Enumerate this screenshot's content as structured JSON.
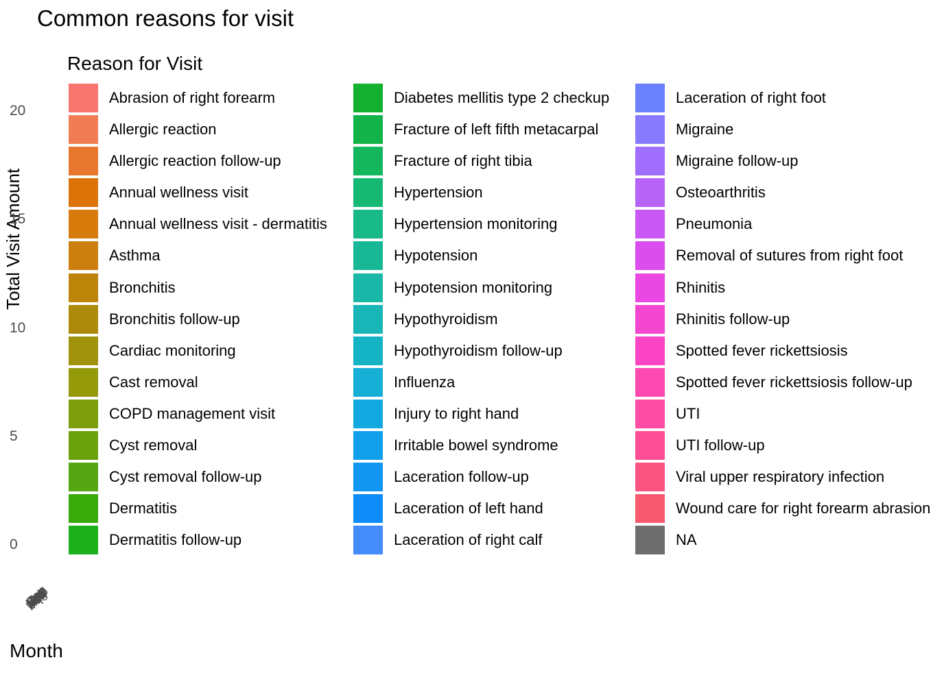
{
  "chart_data": {
    "type": "bar",
    "title": "Common reasons for visit",
    "xlabel": "Month",
    "ylabel": "Total Visit Amount",
    "ylim": [
      0,
      21
    ],
    "y_ticks": [
      "0",
      "5",
      "10",
      "15",
      "20"
    ],
    "x_ticks": [
      "Jan",
      "Feb",
      "Mar",
      "Apr",
      "May",
      "Jun",
      "Jul",
      "Aug",
      "Sep",
      "Oct",
      "Nov",
      "Dec"
    ],
    "grid": false,
    "legend": {
      "title": "Reason for Visit",
      "placement": "overlay",
      "columns": 3,
      "entries": [
        {
          "label": "Abrasion of right forearm",
          "color": "#F8766D"
        },
        {
          "label": "Allergic reaction",
          "color": "#F07D53"
        },
        {
          "label": "Allergic reaction follow-up",
          "color": "#E7762F"
        },
        {
          "label": "Annual wellness visit",
          "color": "#DB7308"
        },
        {
          "label": "Annual wellness visit - dermatitis",
          "color": "#D67A0C"
        },
        {
          "label": "Asthma",
          "color": "#CB7F0E"
        },
        {
          "label": "Bronchitis",
          "color": "#BC850A"
        },
        {
          "label": "Bronchitis follow-up",
          "color": "#AE8A0A"
        },
        {
          "label": "Cardiac monitoring",
          "color": "#A0920A"
        },
        {
          "label": "Cast removal",
          "color": "#959A0B"
        },
        {
          "label": "COPD management visit",
          "color": "#7F9E0C"
        },
        {
          "label": "Cyst removal",
          "color": "#6AA20E"
        },
        {
          "label": "Cyst removal follow-up",
          "color": "#55A612"
        },
        {
          "label": "Dermatitis",
          "color": "#3AAA0B"
        },
        {
          "label": "Dermatitis follow-up",
          "color": "#1DB01D"
        },
        {
          "label": "Diabetes mellitis type 2 checkup",
          "color": "#14B131"
        },
        {
          "label": "Fracture of left fifth metacarpal",
          "color": "#12B44A"
        },
        {
          "label": "Fracture of right tibia",
          "color": "#14B75E"
        },
        {
          "label": "Hypertension",
          "color": "#16B974"
        },
        {
          "label": "Hypertension monitoring",
          "color": "#17B986"
        },
        {
          "label": "Hypotension",
          "color": "#18B897"
        },
        {
          "label": "Hypotension monitoring",
          "color": "#18B7A8"
        },
        {
          "label": "Hypothyroidism",
          "color": "#18B6B7"
        },
        {
          "label": "Hypothyroidism follow-up",
          "color": "#14B3C6"
        },
        {
          "label": "Influenza",
          "color": "#16B0D6"
        },
        {
          "label": "Injury to right hand",
          "color": "#14A8E0"
        },
        {
          "label": "Irritable bowel syndrome",
          "color": "#12A0EA"
        },
        {
          "label": "Laceration follow-up",
          "color": "#1197F2"
        },
        {
          "label": "Laceration of left hand",
          "color": "#0E8DF8"
        },
        {
          "label": "Laceration of right calf",
          "color": "#448BFB"
        },
        {
          "label": "Laceration of right foot",
          "color": "#6B81FE"
        },
        {
          "label": "Migraine",
          "color": "#8879FE"
        },
        {
          "label": "Migraine follow-up",
          "color": "#A06EFD"
        },
        {
          "label": "Osteoarthritis",
          "color": "#B663F8"
        },
        {
          "label": "Pneumonia",
          "color": "#C958F5"
        },
        {
          "label": "Removal of sutures from right foot",
          "color": "#DB4EEE"
        },
        {
          "label": "Rhinitis",
          "color": "#E949E2"
        },
        {
          "label": "Rhinitis follow-up",
          "color": "#F546D2"
        },
        {
          "label": "Spotted fever rickettsiosis",
          "color": "#FB45C4"
        },
        {
          "label": "Spotted fever rickettsiosis follow-up",
          "color": "#FD49B2"
        },
        {
          "label": "UTI",
          "color": "#FE4DA4"
        },
        {
          "label": "UTI follow-up",
          "color": "#FE4F95"
        },
        {
          "label": "Viral upper respiratory infection",
          "color": "#FB5483"
        },
        {
          "label": "Wound care for right forearm abrasion",
          "color": "#F95A70"
        },
        {
          "label": "NA",
          "color": "#6E6E6E"
        }
      ]
    }
  }
}
